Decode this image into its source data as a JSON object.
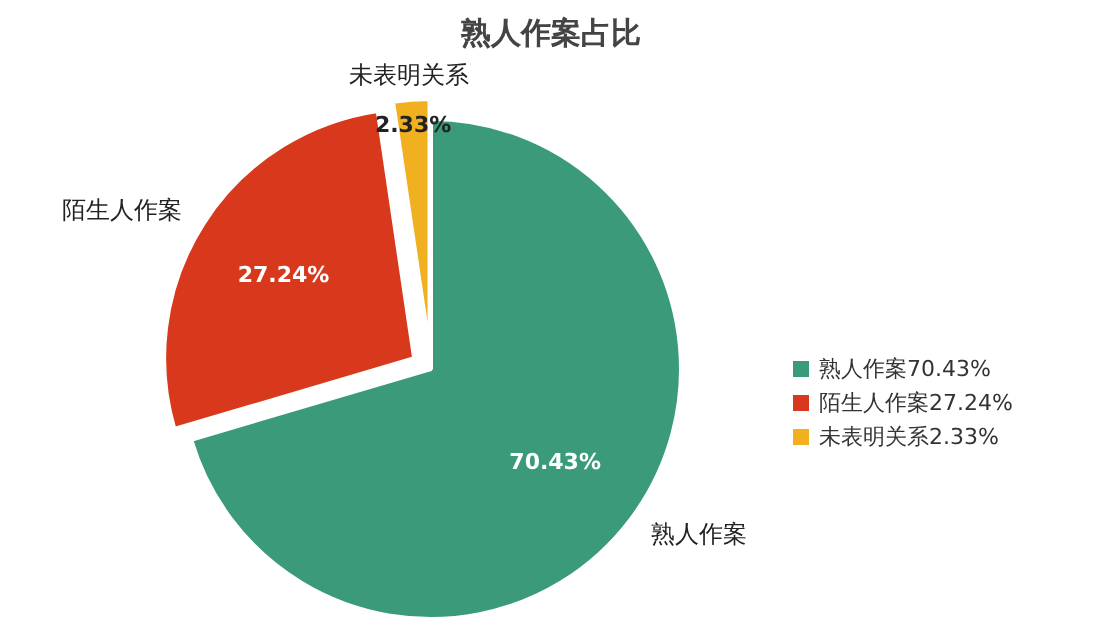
{
  "chart_data": {
    "type": "pie",
    "title": "熟人作案占比",
    "categories": [
      "熟人作案",
      "陌生人作案",
      "未表明关系"
    ],
    "values": [
      70.43,
      27.24,
      2.33
    ],
    "colors": [
      "#3a9a7a",
      "#d8391c",
      "#f0b020"
    ],
    "value_labels": [
      "70.43%",
      "27.24%",
      "2.33%"
    ],
    "legend": "right"
  }
}
